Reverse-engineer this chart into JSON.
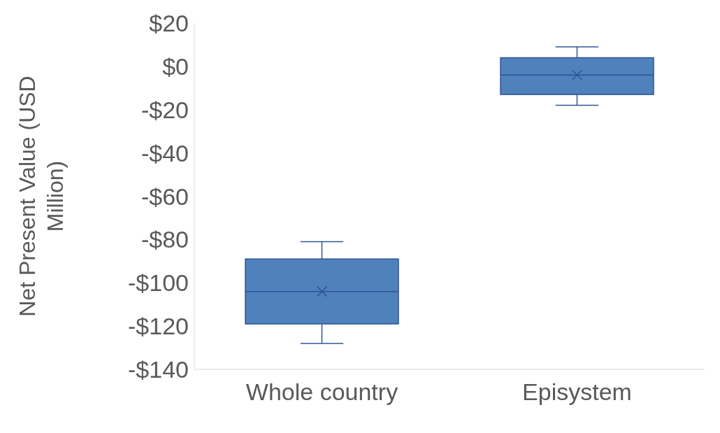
{
  "chart_data": {
    "type": "box",
    "ylabel": "Net Present Value (USD Million)",
    "categories": [
      "Whole country",
      "Episystem"
    ],
    "boxes": [
      {
        "low": -128,
        "q1": -119,
        "median": -104,
        "q3": -89,
        "high": -81,
        "mean": -104
      },
      {
        "low": -18,
        "q1": -13,
        "median": -4,
        "q3": 4,
        "high": 9,
        "mean": -4
      }
    ],
    "color": "#4f81bd",
    "ylim": [
      -140,
      20
    ],
    "yticks": [
      {
        "value": -140,
        "label": "-$140"
      },
      {
        "value": -120,
        "label": "-$120"
      },
      {
        "value": -100,
        "label": "-$100"
      },
      {
        "value": -80,
        "label": "-$80"
      },
      {
        "value": -60,
        "label": "-$60"
      },
      {
        "value": -40,
        "label": "-$40"
      },
      {
        "value": -20,
        "label": "-$20"
      },
      {
        "value": 0,
        "label": "$0"
      },
      {
        "value": 20,
        "label": "$20"
      }
    ],
    "grid": false
  }
}
